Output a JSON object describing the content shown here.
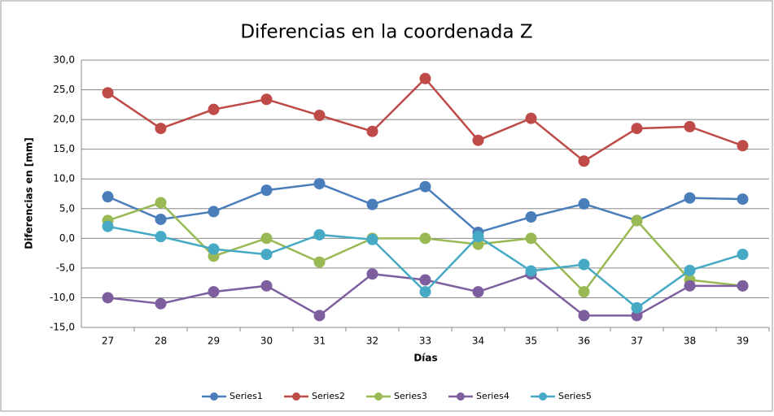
{
  "chart_data": {
    "type": "line",
    "title": "Diferencias en la coordenada Z",
    "x_label": "Días",
    "y_label": "Diferencias en [mm]",
    "categories": [
      "27",
      "28",
      "29",
      "30",
      "31",
      "32",
      "33",
      "34",
      "35",
      "36",
      "37",
      "38",
      "39"
    ],
    "series": [
      {
        "name": "Series1",
        "color": "#4a7ebb",
        "values": [
          7,
          3.2,
          4.5,
          8.1,
          9.2,
          5.7,
          8.7,
          1,
          3.6,
          5.8,
          3,
          6.8,
          6.6
        ]
      },
      {
        "name": "Series2",
        "color": "#be4b48",
        "values": [
          24.5,
          18.5,
          21.7,
          23.4,
          20.7,
          18,
          26.9,
          16.5,
          20.2,
          13,
          18.5,
          18.8,
          15.6
        ]
      },
      {
        "name": "Series3",
        "color": "#98b954",
        "values": [
          3,
          6,
          -3,
          0,
          -4,
          0,
          0,
          -1,
          0,
          -9,
          3,
          -7,
          -8
        ]
      },
      {
        "name": "Series4",
        "color": "#7d5fa0",
        "values": [
          -10,
          -11,
          -9,
          -8,
          -13,
          -6,
          -7,
          -9,
          -6,
          -13,
          -13,
          -8,
          -8
        ]
      },
      {
        "name": "Series5",
        "color": "#46aac5",
        "values": [
          2,
          0.3,
          -1.8,
          -2.7,
          0.6,
          -0.2,
          -9,
          0.3,
          -5.5,
          -4.4,
          -11.7,
          -5.4,
          -2.7
        ]
      }
    ],
    "ylim": [
      -15,
      30
    ],
    "yticks": [
      {
        "value": -15,
        "label": "-15,0"
      },
      {
        "value": -10,
        "label": "-10,0"
      },
      {
        "value": -5,
        "label": "-5,0"
      },
      {
        "value": 0,
        "label": "0,0"
      },
      {
        "value": 5,
        "label": "5,0"
      },
      {
        "value": 10,
        "label": "10,0"
      },
      {
        "value": 15,
        "label": "15,0"
      },
      {
        "value": 20,
        "label": "20,0"
      },
      {
        "value": 25,
        "label": "25,0"
      },
      {
        "value": 30,
        "label": "30,0"
      }
    ],
    "grid": true,
    "legend": "bottom"
  }
}
